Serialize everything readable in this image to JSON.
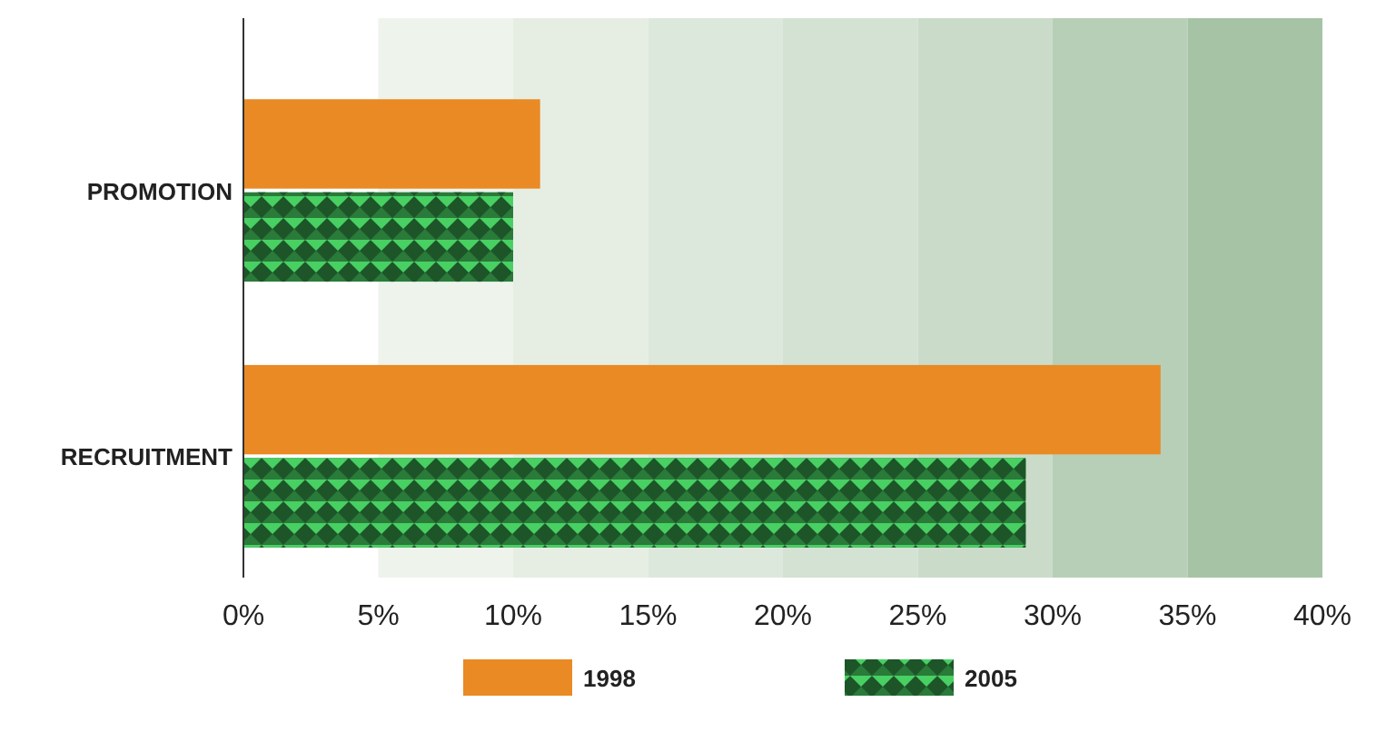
{
  "chart_data": {
    "type": "bar",
    "orientation": "horizontal",
    "categories": [
      "PROMOTION",
      "RECRUITMENT"
    ],
    "series": [
      {
        "name": "1998",
        "color": "#e98a24",
        "values": [
          11,
          34
        ]
      },
      {
        "name": "2005",
        "color": "#2a7a3a",
        "values": [
          10,
          29
        ]
      }
    ],
    "xlim": [
      0,
      40
    ],
    "xticks": [
      {
        "value": 0,
        "label": "0%"
      },
      {
        "value": 5,
        "label": "5%"
      },
      {
        "value": 10,
        "label": "10%"
      },
      {
        "value": 15,
        "label": "15%"
      },
      {
        "value": 20,
        "label": "20%"
      },
      {
        "value": 25,
        "label": "25%"
      },
      {
        "value": 30,
        "label": "30%"
      },
      {
        "value": 35,
        "label": "35%"
      },
      {
        "value": 40,
        "label": "40%"
      }
    ],
    "bands": [
      {
        "axis": "x",
        "from": 5,
        "to": 10,
        "color": "#eef3ec"
      },
      {
        "axis": "x",
        "from": 10,
        "to": 15,
        "color": "#e6eee4"
      },
      {
        "axis": "x",
        "from": 15,
        "to": 20,
        "color": "#dde8dc"
      },
      {
        "axis": "x",
        "from": 20,
        "to": 25,
        "color": "#d3e2d2"
      },
      {
        "axis": "x",
        "from": 25,
        "to": 30,
        "color": "#cadcc9"
      },
      {
        "axis": "x",
        "from": 30,
        "to": 35,
        "color": "#b8cfb7"
      },
      {
        "axis": "x",
        "from": 35,
        "to": 40,
        "color": "#a6c3a6"
      }
    ],
    "grid": false,
    "legend": "bottom"
  }
}
